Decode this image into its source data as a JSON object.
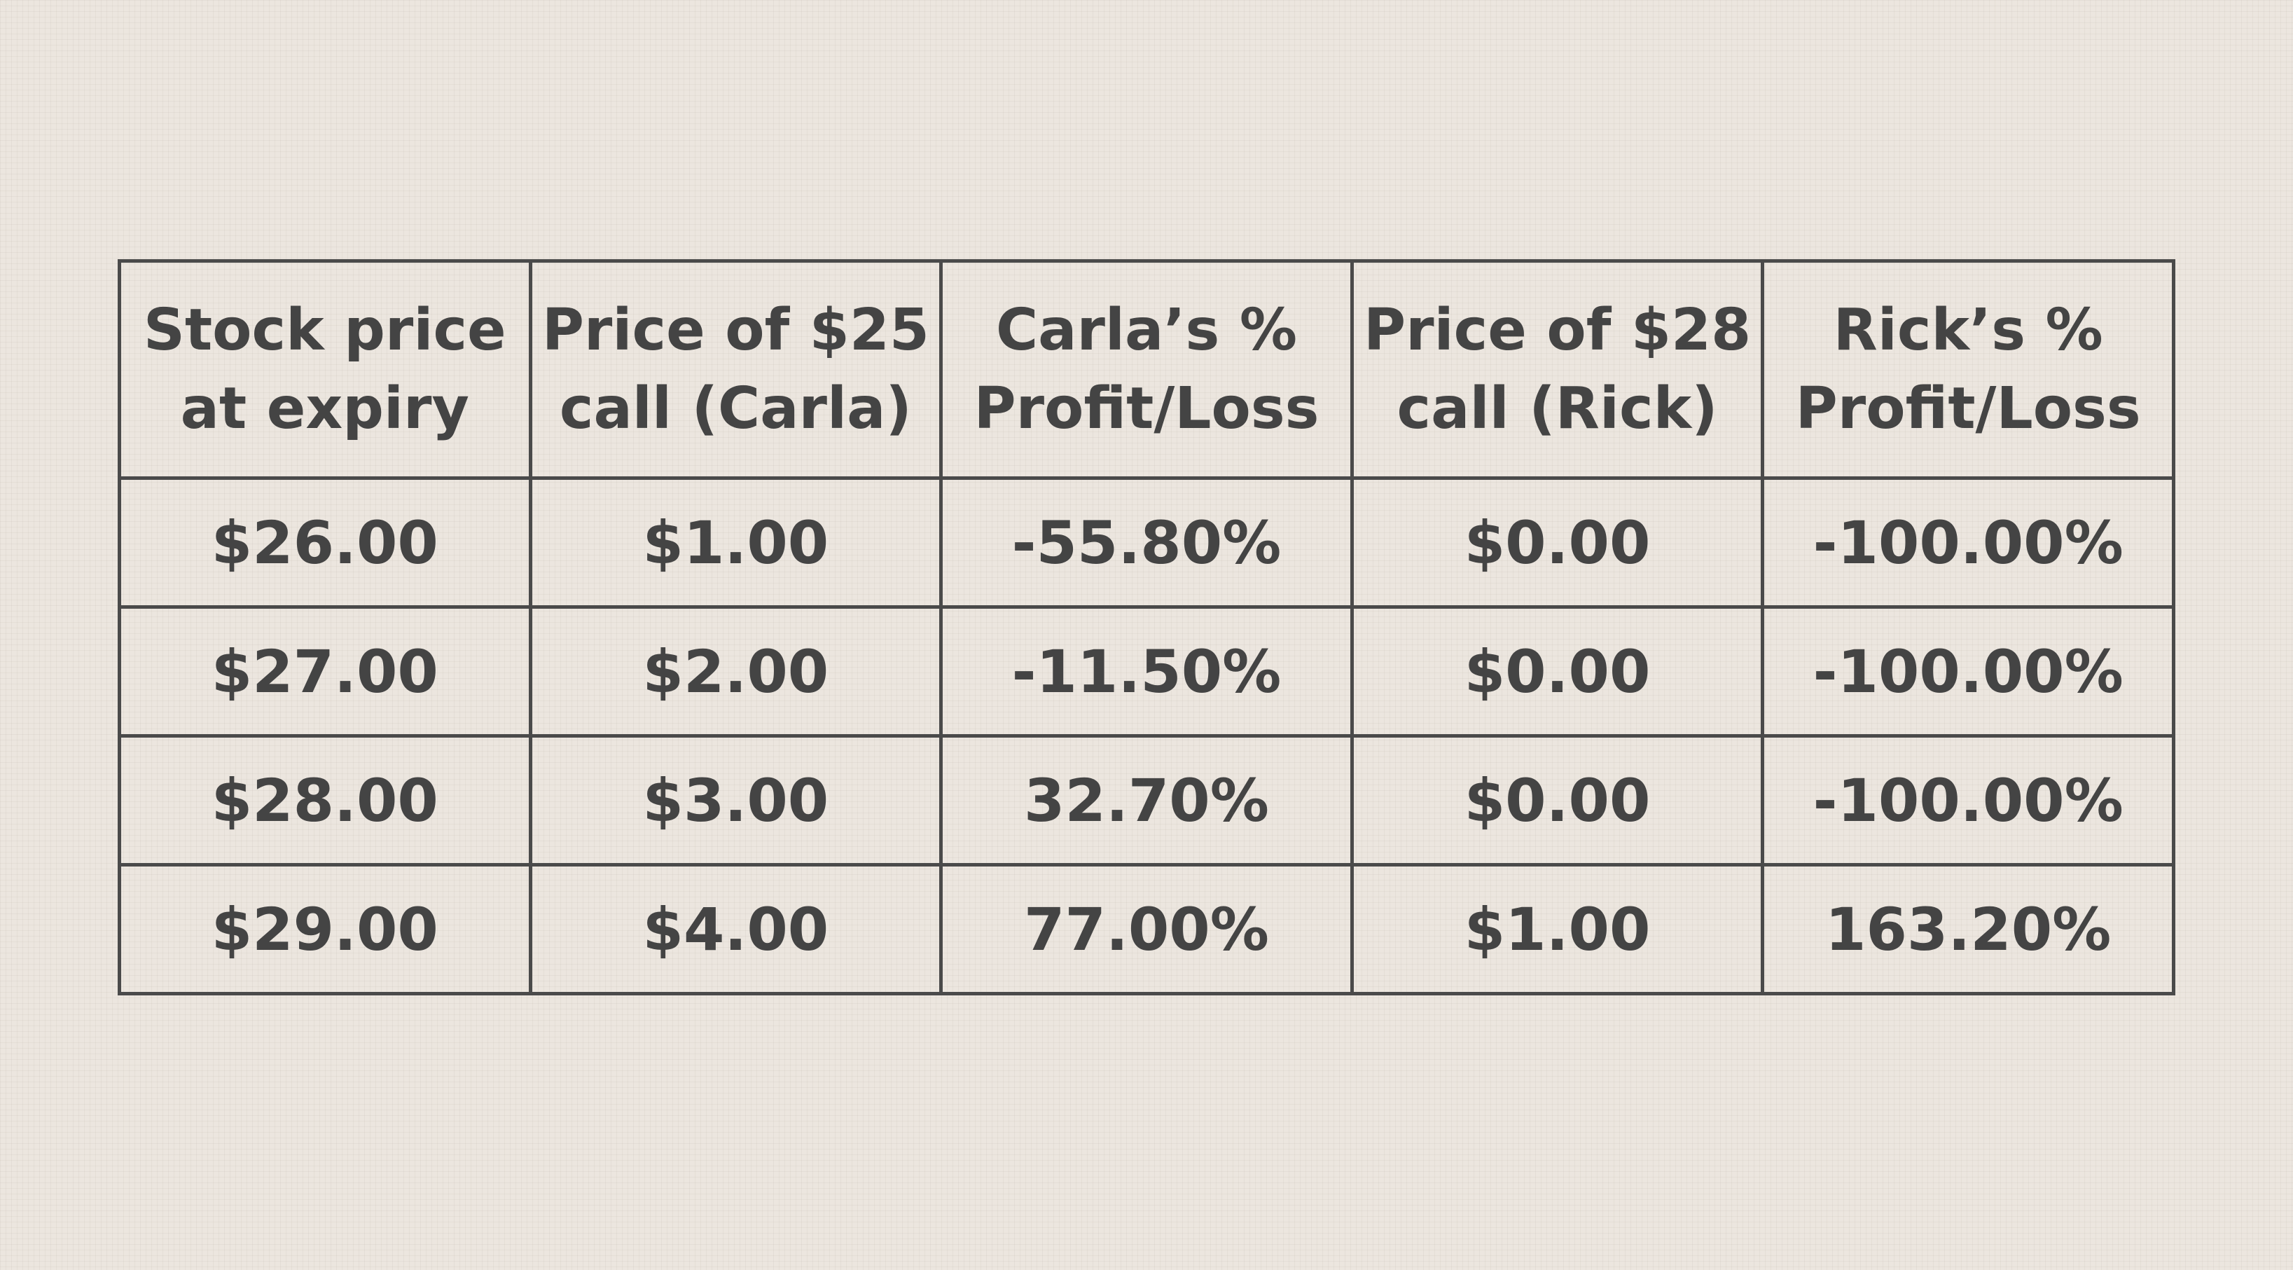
{
  "chart_data": {
    "type": "table",
    "columns": [
      {
        "key": "stock",
        "label_lines": [
          "Stock price",
          "at expiry"
        ]
      },
      {
        "key": "carla_price",
        "label_lines": [
          "Price of $25",
          "call (Carla)"
        ]
      },
      {
        "key": "carla_pl",
        "label_lines": [
          "Carla’s %",
          "Profit/Loss"
        ]
      },
      {
        "key": "rick_price",
        "label_lines": [
          "Price of $28",
          "call (Rick)"
        ]
      },
      {
        "key": "rick_pl",
        "label_lines": [
          "Rick’s %",
          "Profit/Loss"
        ]
      }
    ],
    "rows": [
      [
        "$26.00",
        "$1.00",
        "-55.80%",
        "$0.00",
        "-100.00%"
      ],
      [
        "$27.00",
        "$2.00",
        "-11.50%",
        "$0.00",
        "-100.00%"
      ],
      [
        "$28.00",
        "$3.00",
        "32.70%",
        "$0.00",
        "-100.00%"
      ],
      [
        "$29.00",
        "$4.00",
        "77.00%",
        "$1.00",
        "163.20%"
      ]
    ],
    "colors": {
      "background": "#ece6df",
      "border": "#4a4a4a",
      "text": "#444444"
    }
  }
}
